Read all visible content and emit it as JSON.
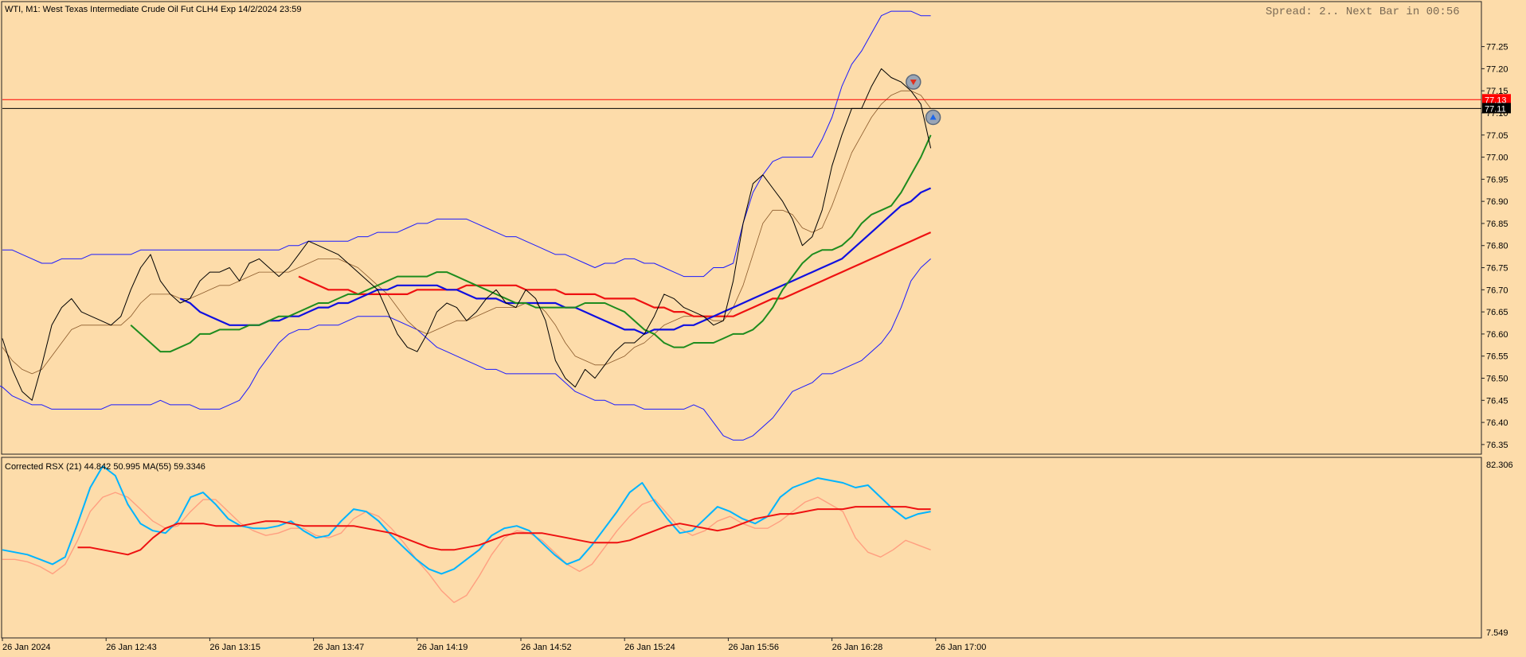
{
  "header": {
    "title": "WTI, M1:  West Texas Intermediate Crude Oil Fut CLH4 Exp 14/2/2024 23:59",
    "status": "Spread: 2.. Next Bar in 00:56"
  },
  "indicator": {
    "title": "Corrected RSX (21) 44.842 50.995 MA(55) 59.3346",
    "scale_top": "82.306",
    "scale_bottom": "7.549"
  },
  "colors": {
    "background": "#fddcaa",
    "price": "#000000",
    "bollinger": "#1a1aff",
    "ma_thin": "#8b5a2b",
    "ma_green": "#1e8c1e",
    "ma_blue": "#1010e0",
    "ma_red": "#ee1111",
    "rsx": "#00b4ff",
    "rsx_signal": "#ff9f80",
    "rsx_ma": "#ee1111"
  },
  "chart_data": [
    {
      "type": "line",
      "title": "WTI, M1:  West Texas Intermediate Crude Oil Fut CLH4 Exp 14/2/2024 23:59",
      "y_ticks": [
        "77.25",
        "77.20",
        "77.15",
        "77.10",
        "77.05",
        "77.00",
        "76.95",
        "76.90",
        "76.85",
        "76.80",
        "76.75",
        "76.70",
        "76.65",
        "76.60",
        "76.55",
        "76.50",
        "76.45",
        "76.40",
        "76.35"
      ],
      "ylim": [
        76.33,
        77.35
      ],
      "x_ticks": [
        "26 Jan 2024",
        "26 Jan 12:43",
        "26 Jan 13:15",
        "26 Jan 13:47",
        "26 Jan 14:19",
        "26 Jan 14:52",
        "26 Jan 15:24",
        "26 Jan 15:56",
        "26 Jan 16:28",
        "26 Jan 17:00"
      ],
      "price_markers": [
        {
          "label": "77.13",
          "value": 77.13,
          "color": "#ff0000"
        },
        {
          "label": "77.11",
          "value": 77.11,
          "color": "#000000"
        }
      ],
      "trade_arrows": [
        {
          "direction": "sell",
          "index": 92,
          "value": 77.17
        },
        {
          "direction": "buy",
          "index": 94,
          "value": 77.09
        }
      ],
      "series": [
        {
          "role": "price",
          "values": [
            76.59,
            76.52,
            76.47,
            76.45,
            76.53,
            76.62,
            76.66,
            76.68,
            76.65,
            76.64,
            76.63,
            76.62,
            76.64,
            76.7,
            76.75,
            76.78,
            76.72,
            76.69,
            76.67,
            76.68,
            76.72,
            76.74,
            76.74,
            76.75,
            76.72,
            76.76,
            76.77,
            76.75,
            76.73,
            76.75,
            76.78,
            76.81,
            76.8,
            76.79,
            76.78,
            76.76,
            76.74,
            76.72,
            76.7,
            76.65,
            76.6,
            76.57,
            76.56,
            76.6,
            76.65,
            76.67,
            76.66,
            76.63,
            76.65,
            76.68,
            76.7,
            76.67,
            76.66,
            76.7,
            76.68,
            76.63,
            76.54,
            76.5,
            76.48,
            76.52,
            76.5,
            76.53,
            76.56,
            76.58,
            76.58,
            76.6,
            76.64,
            76.69,
            76.68,
            76.66,
            76.65,
            76.64,
            76.62,
            76.63,
            76.72,
            76.85,
            76.94,
            76.96,
            76.93,
            76.9,
            76.86,
            76.8,
            76.82,
            76.88,
            76.98,
            77.05,
            77.11,
            77.11,
            77.16,
            77.2,
            77.18,
            77.17,
            77.15,
            77.12,
            77.02
          ]
        },
        {
          "role": "bollinger_upper",
          "values": [
            76.79,
            76.79,
            76.78,
            76.77,
            76.76,
            76.76,
            76.77,
            76.77,
            76.77,
            76.78,
            76.78,
            76.78,
            76.78,
            76.78,
            76.79,
            76.79,
            76.79,
            76.79,
            76.79,
            76.79,
            76.79,
            76.79,
            76.79,
            76.79,
            76.79,
            76.79,
            76.79,
            76.79,
            76.79,
            76.8,
            76.8,
            76.81,
            76.81,
            76.81,
            76.81,
            76.81,
            76.82,
            76.82,
            76.83,
            76.83,
            76.83,
            76.84,
            76.85,
            76.85,
            76.86,
            76.86,
            76.86,
            76.86,
            76.85,
            76.84,
            76.83,
            76.82,
            76.82,
            76.81,
            76.8,
            76.79,
            76.78,
            76.78,
            76.77,
            76.76,
            76.75,
            76.76,
            76.76,
            76.77,
            76.77,
            76.76,
            76.76,
            76.75,
            76.74,
            76.73,
            76.73,
            76.73,
            76.75,
            76.75,
            76.76,
            76.85,
            76.92,
            76.96,
            76.99,
            77.0,
            77.0,
            77.0,
            77.0,
            77.04,
            77.09,
            77.16,
            77.21,
            77.24,
            77.28,
            77.32,
            77.33,
            77.33,
            77.33,
            77.32,
            77.32
          ]
        },
        {
          "role": "bollinger_lower",
          "values": [
            76.5,
            76.49,
            76.48,
            76.46,
            76.45,
            76.44,
            76.44,
            76.43,
            76.43,
            76.43,
            76.43,
            76.43,
            76.43,
            76.44,
            76.44,
            76.44,
            76.44,
            76.44,
            76.45,
            76.44,
            76.44,
            76.44,
            76.43,
            76.43,
            76.43,
            76.44,
            76.45,
            76.48,
            76.52,
            76.55,
            76.58,
            76.6,
            76.61,
            76.61,
            76.62,
            76.62,
            76.62,
            76.63,
            76.64,
            76.64,
            76.64,
            76.64,
            76.63,
            76.62,
            76.61,
            76.59,
            76.57,
            76.56,
            76.55,
            76.54,
            76.53,
            76.52,
            76.52,
            76.51,
            76.51,
            76.51,
            76.51,
            76.51,
            76.51,
            76.49,
            76.47,
            76.46,
            76.45,
            76.45,
            76.44,
            76.44,
            76.44,
            76.43,
            76.43,
            76.43,
            76.43,
            76.43,
            76.44,
            76.43,
            76.4,
            76.37,
            76.36,
            76.36,
            76.37,
            76.39,
            76.41,
            76.44,
            76.47,
            76.48,
            76.49,
            76.51,
            76.51,
            76.52,
            76.53,
            76.54,
            76.56,
            76.58,
            76.61,
            76.66,
            76.72,
            76.75,
            76.77
          ]
        },
        {
          "role": "ma_thin",
          "values": [
            76.57,
            76.54,
            76.52,
            76.51,
            76.52,
            76.55,
            76.58,
            76.61,
            76.62,
            76.62,
            76.62,
            76.62,
            76.62,
            76.64,
            76.67,
            76.69,
            76.69,
            76.69,
            76.68,
            76.68,
            76.69,
            76.7,
            76.71,
            76.71,
            76.72,
            76.73,
            76.74,
            76.74,
            76.74,
            76.74,
            76.75,
            76.76,
            76.77,
            76.77,
            76.77,
            76.76,
            76.75,
            76.73,
            76.71,
            76.69,
            76.66,
            76.63,
            76.61,
            76.6,
            76.61,
            76.62,
            76.63,
            76.63,
            76.64,
            76.65,
            76.66,
            76.66,
            76.66,
            76.67,
            76.67,
            76.65,
            76.62,
            76.58,
            76.55,
            76.54,
            76.53,
            76.53,
            76.54,
            76.55,
            76.57,
            76.58,
            76.6,
            76.62,
            76.63,
            76.64,
            76.64,
            76.64,
            76.63,
            76.63,
            76.66,
            76.71,
            76.78,
            76.85,
            76.88,
            76.88,
            76.87,
            76.84,
            76.83,
            76.84,
            76.89,
            76.95,
            77.01,
            77.05,
            77.09,
            77.12,
            77.14,
            77.15,
            77.15,
            77.14,
            77.11
          ]
        },
        {
          "role": "ma_green",
          "values": [
            76.62,
            76.6,
            76.58,
            76.56,
            76.56,
            76.57,
            76.58,
            76.6,
            76.6,
            76.61,
            76.61,
            76.61,
            76.62,
            76.62,
            76.63,
            76.64,
            76.64,
            76.65,
            76.66,
            76.67,
            76.67,
            76.68,
            76.69,
            76.69,
            76.7,
            76.71,
            76.72,
            76.73,
            76.73,
            76.73,
            76.73,
            76.74,
            76.74,
            76.73,
            76.72,
            76.71,
            76.7,
            76.69,
            76.68,
            76.67,
            76.67,
            76.66,
            76.66,
            76.66,
            76.66,
            76.66,
            76.67,
            76.67,
            76.67,
            76.66,
            76.65,
            76.63,
            76.61,
            76.6,
            76.58,
            76.57,
            76.57,
            76.58,
            76.58,
            76.58,
            76.59,
            76.6,
            76.6,
            76.61,
            76.63,
            76.66,
            76.7,
            76.73,
            76.76,
            76.78,
            76.79,
            76.79,
            76.8,
            76.82,
            76.85,
            76.87,
            76.88,
            76.89,
            76.92,
            76.96,
            77.0,
            77.05
          ]
        },
        {
          "role": "ma_blue",
          "values": [
            76.68,
            76.67,
            76.65,
            76.64,
            76.63,
            76.62,
            76.62,
            76.62,
            76.62,
            76.63,
            76.63,
            76.64,
            76.64,
            76.65,
            76.66,
            76.66,
            76.67,
            76.67,
            76.68,
            76.69,
            76.7,
            76.7,
            76.71,
            76.71,
            76.71,
            76.71,
            76.71,
            76.7,
            76.7,
            76.69,
            76.68,
            76.68,
            76.68,
            76.67,
            76.67,
            76.67,
            76.67,
            76.67,
            76.67,
            76.66,
            76.66,
            76.65,
            76.64,
            76.63,
            76.62,
            76.61,
            76.61,
            76.6,
            76.61,
            76.61,
            76.61,
            76.62,
            76.62,
            76.63,
            76.64,
            76.65,
            76.66,
            76.67,
            76.68,
            76.69,
            76.7,
            76.71,
            76.72,
            76.73,
            76.74,
            76.75,
            76.76,
            76.77,
            76.79,
            76.81,
            76.83,
            76.85,
            76.87,
            76.89,
            76.9,
            76.92,
            76.93
          ]
        },
        {
          "role": "ma_red",
          "values": [
            76.73,
            76.72,
            76.71,
            76.7,
            76.7,
            76.7,
            76.69,
            76.69,
            76.69,
            76.69,
            76.69,
            76.69,
            76.7,
            76.7,
            76.7,
            76.7,
            76.7,
            76.71,
            76.71,
            76.71,
            76.71,
            76.71,
            76.71,
            76.7,
            76.7,
            76.7,
            76.7,
            76.69,
            76.69,
            76.69,
            76.69,
            76.68,
            76.68,
            76.68,
            76.68,
            76.67,
            76.66,
            76.66,
            76.65,
            76.65,
            76.64,
            76.64,
            76.64,
            76.64,
            76.64,
            76.65,
            76.66,
            76.67,
            76.68,
            76.68,
            76.69,
            76.7,
            76.71,
            76.72,
            76.73,
            76.74,
            76.75,
            76.76,
            76.77,
            76.78,
            76.79,
            76.8,
            76.81,
            76.82,
            76.83
          ]
        }
      ]
    },
    {
      "type": "line",
      "title": "Corrected RSX (21) 44.842 50.995 MA(55) 59.3346",
      "ylim": [
        7.549,
        82.306
      ],
      "series": [
        {
          "role": "rsx",
          "values": [
            44,
            43,
            42,
            40,
            38,
            41,
            55,
            70,
            79,
            75,
            63,
            55,
            52,
            51,
            56,
            66,
            68,
            63,
            57,
            54,
            53,
            53,
            54,
            56,
            52,
            49,
            50,
            56,
            61,
            60,
            56,
            50,
            45,
            40,
            36,
            34,
            36,
            40,
            44,
            50,
            53,
            54,
            52,
            47,
            42,
            38,
            40,
            46,
            53,
            60,
            68,
            72,
            64,
            57,
            51,
            52,
            57,
            62,
            60,
            57,
            55,
            58,
            66,
            70,
            72,
            74,
            73,
            72,
            70,
            71,
            66,
            61,
            57,
            59,
            60
          ]
        },
        {
          "role": "rsx_signal",
          "values": [
            40,
            40,
            39,
            37,
            34,
            38,
            48,
            60,
            66,
            68,
            66,
            61,
            56,
            53,
            54,
            60,
            65,
            65,
            60,
            55,
            52,
            50,
            51,
            53,
            53,
            50,
            49,
            51,
            57,
            60,
            58,
            53,
            47,
            40,
            34,
            27,
            22,
            25,
            33,
            42,
            49,
            52,
            51,
            48,
            43,
            38,
            35,
            38,
            45,
            52,
            58,
            63,
            65,
            59,
            53,
            50,
            52,
            56,
            58,
            55,
            53,
            53,
            56,
            60,
            64,
            66,
            63,
            60,
            49,
            43,
            41,
            44,
            48,
            46,
            44
          ]
        },
        {
          "role": "rsx_ma",
          "values": [
            45,
            45,
            44,
            43,
            42,
            44,
            49,
            53,
            55,
            55,
            55,
            54,
            54,
            54,
            55,
            56,
            56,
            55,
            54,
            54,
            54,
            54,
            54,
            53,
            52,
            51,
            49,
            47,
            45,
            44,
            44,
            45,
            46,
            48,
            50,
            51,
            51,
            51,
            50,
            49,
            48,
            47,
            47,
            47,
            48,
            50,
            52,
            54,
            55,
            54,
            53,
            52,
            53,
            55,
            57,
            58,
            59,
            59,
            60,
            61,
            61,
            61,
            62,
            62,
            62,
            62,
            62,
            61,
            61
          ]
        }
      ]
    }
  ]
}
